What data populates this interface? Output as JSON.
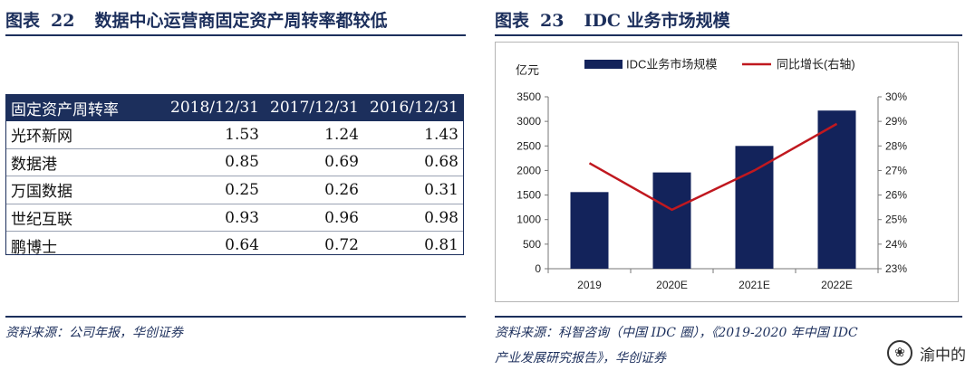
{
  "left": {
    "fig_label": "图表",
    "fig_num": "22",
    "fig_title": "数据中心运营商固定资产周转率都较低",
    "table": {
      "headers": [
        "固定资产周转率",
        "2018/12/31",
        "2017/12/31",
        "2016/12/31"
      ],
      "rows": [
        [
          "光环新网",
          "1.53",
          "1.24",
          "1.43"
        ],
        [
          "数据港",
          "0.85",
          "0.69",
          "0.68"
        ],
        [
          "万国数据",
          "0.25",
          "0.26",
          "0.31"
        ],
        [
          "世纪互联",
          "0.93",
          "0.96",
          "0.98"
        ],
        [
          "鹏博士",
          "0.64",
          "0.72",
          "0.81"
        ]
      ]
    },
    "source": "资料来源：公司年报，华创证券"
  },
  "right": {
    "fig_label": "图表",
    "fig_num": "23",
    "fig_title": "IDC 业务市场规模",
    "source_line1": "资料来源：科智咨询（中国 IDC 圈），《2019-2020 年中国 IDC",
    "source_line2": "产业发展研究报告》，华创证券"
  },
  "watermark": {
    "logo_glyph": "❀",
    "text": "渝中的"
  },
  "colors": {
    "navy": "#1c2f5c",
    "bar": "#13235b",
    "line": "#c0181f"
  },
  "chart_data": {
    "type": "bar",
    "categories": [
      "2019",
      "2020E",
      "2021E",
      "2022E"
    ],
    "series": [
      {
        "name": "IDC业务市场规模",
        "type": "bar",
        "axis": "left",
        "values": [
          1560,
          1960,
          2500,
          3220
        ]
      },
      {
        "name": "同比增长(右轴)",
        "type": "line",
        "axis": "right",
        "values": [
          27.3,
          25.4,
          27.0,
          28.9
        ]
      }
    ],
    "y_unit_label": "亿元",
    "ylim": [
      0,
      3500
    ],
    "yticks": [
      "0",
      "500",
      "1000",
      "1500",
      "2000",
      "2500",
      "3000",
      "3500"
    ],
    "y2lim": [
      23,
      30
    ],
    "y2ticks": [
      "23%",
      "24%",
      "25%",
      "26%",
      "27%",
      "28%",
      "29%",
      "30%"
    ],
    "legend_position": "top",
    "grid": false
  }
}
